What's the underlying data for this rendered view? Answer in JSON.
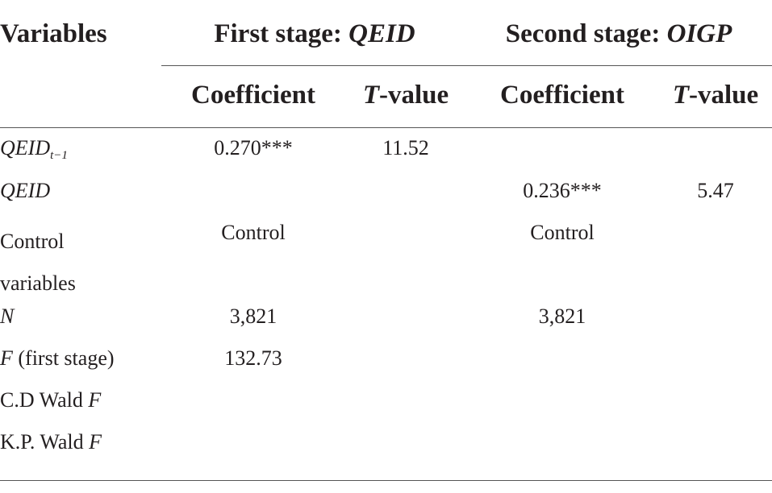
{
  "table": {
    "header": {
      "variables": "Variables",
      "groups": [
        {
          "text": "First stage: ",
          "italic": "QEID"
        },
        {
          "text": "Second stage: ",
          "italic": "OIGP"
        }
      ],
      "columns": [
        {
          "text": "Coefficient"
        },
        {
          "italic": "T",
          "text": "-value"
        },
        {
          "text": "Coefficient"
        },
        {
          "italic": "T",
          "text": "-value"
        }
      ]
    },
    "rows": [
      {
        "label": {
          "italic": "QEID",
          "sub": "t−1"
        },
        "coef1": "0.270***",
        "t1": "11.52"
      },
      {
        "label": {
          "italic": "QEID"
        },
        "coef2": "0.236***",
        "t2": "5.47"
      },
      {
        "label": {
          "text": "Control variables"
        },
        "coef1": "Control",
        "coef2": "Control"
      },
      {
        "label": {
          "italic": "N"
        },
        "coef1": "3,821",
        "coef2": "3,821"
      },
      {
        "label": {
          "italic": "F",
          "text": " (first stage)"
        },
        "coef1": "132.73"
      },
      {
        "label": {
          "text": "C.D Wald ",
          "italic": "F"
        }
      },
      {
        "label": {
          "text": "K.P. Wald ",
          "italic": "F"
        }
      }
    ]
  }
}
